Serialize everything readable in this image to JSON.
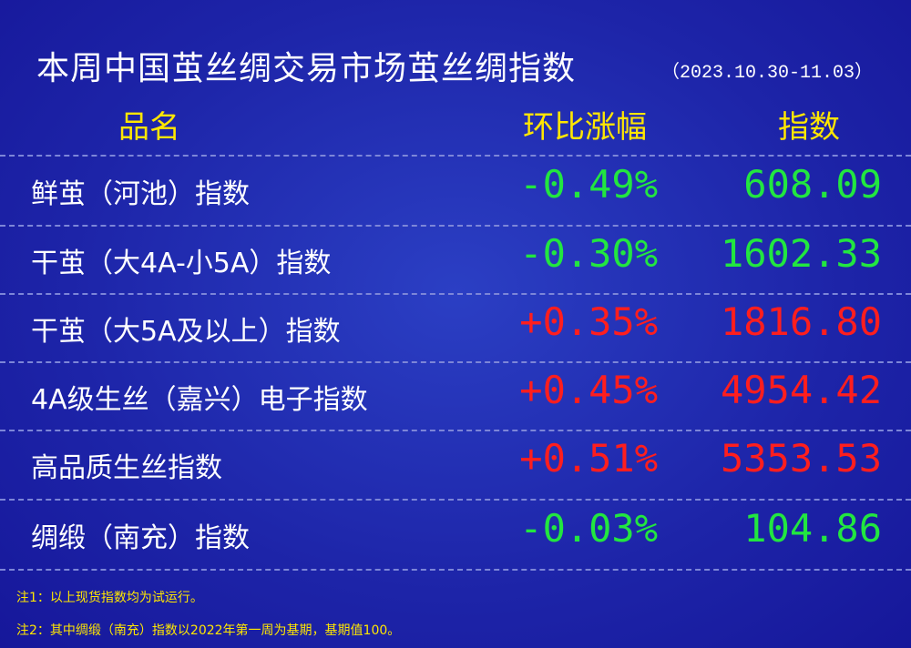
{
  "header": {
    "title": "本周中国茧丝绸交易市场茧丝绸指数",
    "date_range": "（2023.10.30-11.03）"
  },
  "table": {
    "columns": [
      "品名",
      "环比涨幅",
      "指数"
    ],
    "rows": [
      [
        "鲜茧（河池）指数",
        "-0.49%",
        "608.09"
      ],
      [
        "干茧（大4A-小5A）指数",
        "-0.30%",
        "1602.33"
      ],
      [
        "干茧（大5A及以上）指数",
        "+0.35%",
        "1816.80"
      ],
      [
        "4A级生丝（嘉兴）电子指数",
        "+0.45%",
        "4954.42"
      ],
      [
        "高品质生丝指数",
        "+0.51%",
        "5353.53"
      ],
      [
        "绸缎（南充）指数",
        "-0.03%",
        "104.86"
      ]
    ]
  },
  "notes": [
    "注1：以上现货指数均为试运行。",
    "注2：其中绸缎（南充）指数以2022年第一周为基期，基期值100。"
  ]
}
